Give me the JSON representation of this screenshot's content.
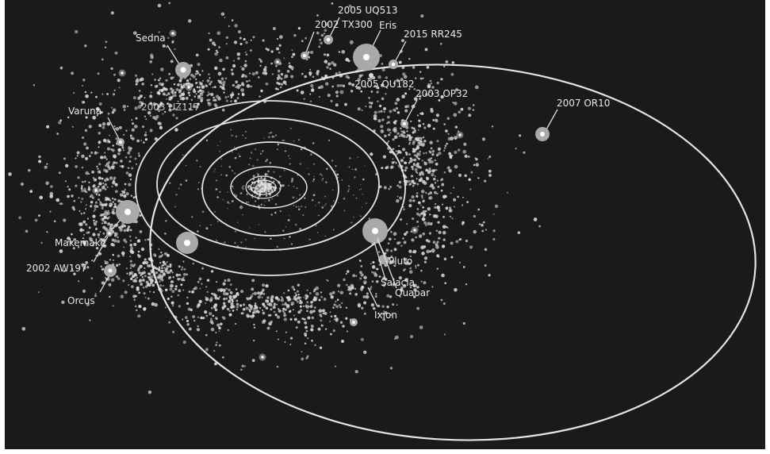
{
  "colors": {
    "background": "#1b1a1a",
    "orbit": "#e4e4e4",
    "dot": "#d8d8d8",
    "halo": "#a9a9a9",
    "label": "#e9e9e9"
  },
  "objects": [
    {
      "id": "sedna",
      "label": "Sedna"
    },
    {
      "id": "2005-uq513",
      "label": "2005 UQ513"
    },
    {
      "id": "2002-tx300",
      "label": "2002 TX300"
    },
    {
      "id": "eris",
      "label": "Eris"
    },
    {
      "id": "2015-rr245",
      "label": "2015 RR245"
    },
    {
      "id": "2005-qu182",
      "label": "2005 QU182"
    },
    {
      "id": "2003-op32",
      "label": "2003 OP32"
    },
    {
      "id": "2007-or10",
      "label": "2007 OR10"
    },
    {
      "id": "varuna",
      "label": "Varuna"
    },
    {
      "id": "obscured",
      "label": "2003 UZ117"
    },
    {
      "id": "makemake",
      "label": "Makemake"
    },
    {
      "id": "2002-aw197",
      "label": "2002 AW197"
    },
    {
      "id": "orcus",
      "label": "Orcus"
    },
    {
      "id": "pluto",
      "label": "Pluto"
    },
    {
      "id": "salacia",
      "label": "Salacia"
    },
    {
      "id": "quaoar",
      "label": "Quaoar"
    },
    {
      "id": "ixion",
      "label": "Ixion"
    }
  ]
}
